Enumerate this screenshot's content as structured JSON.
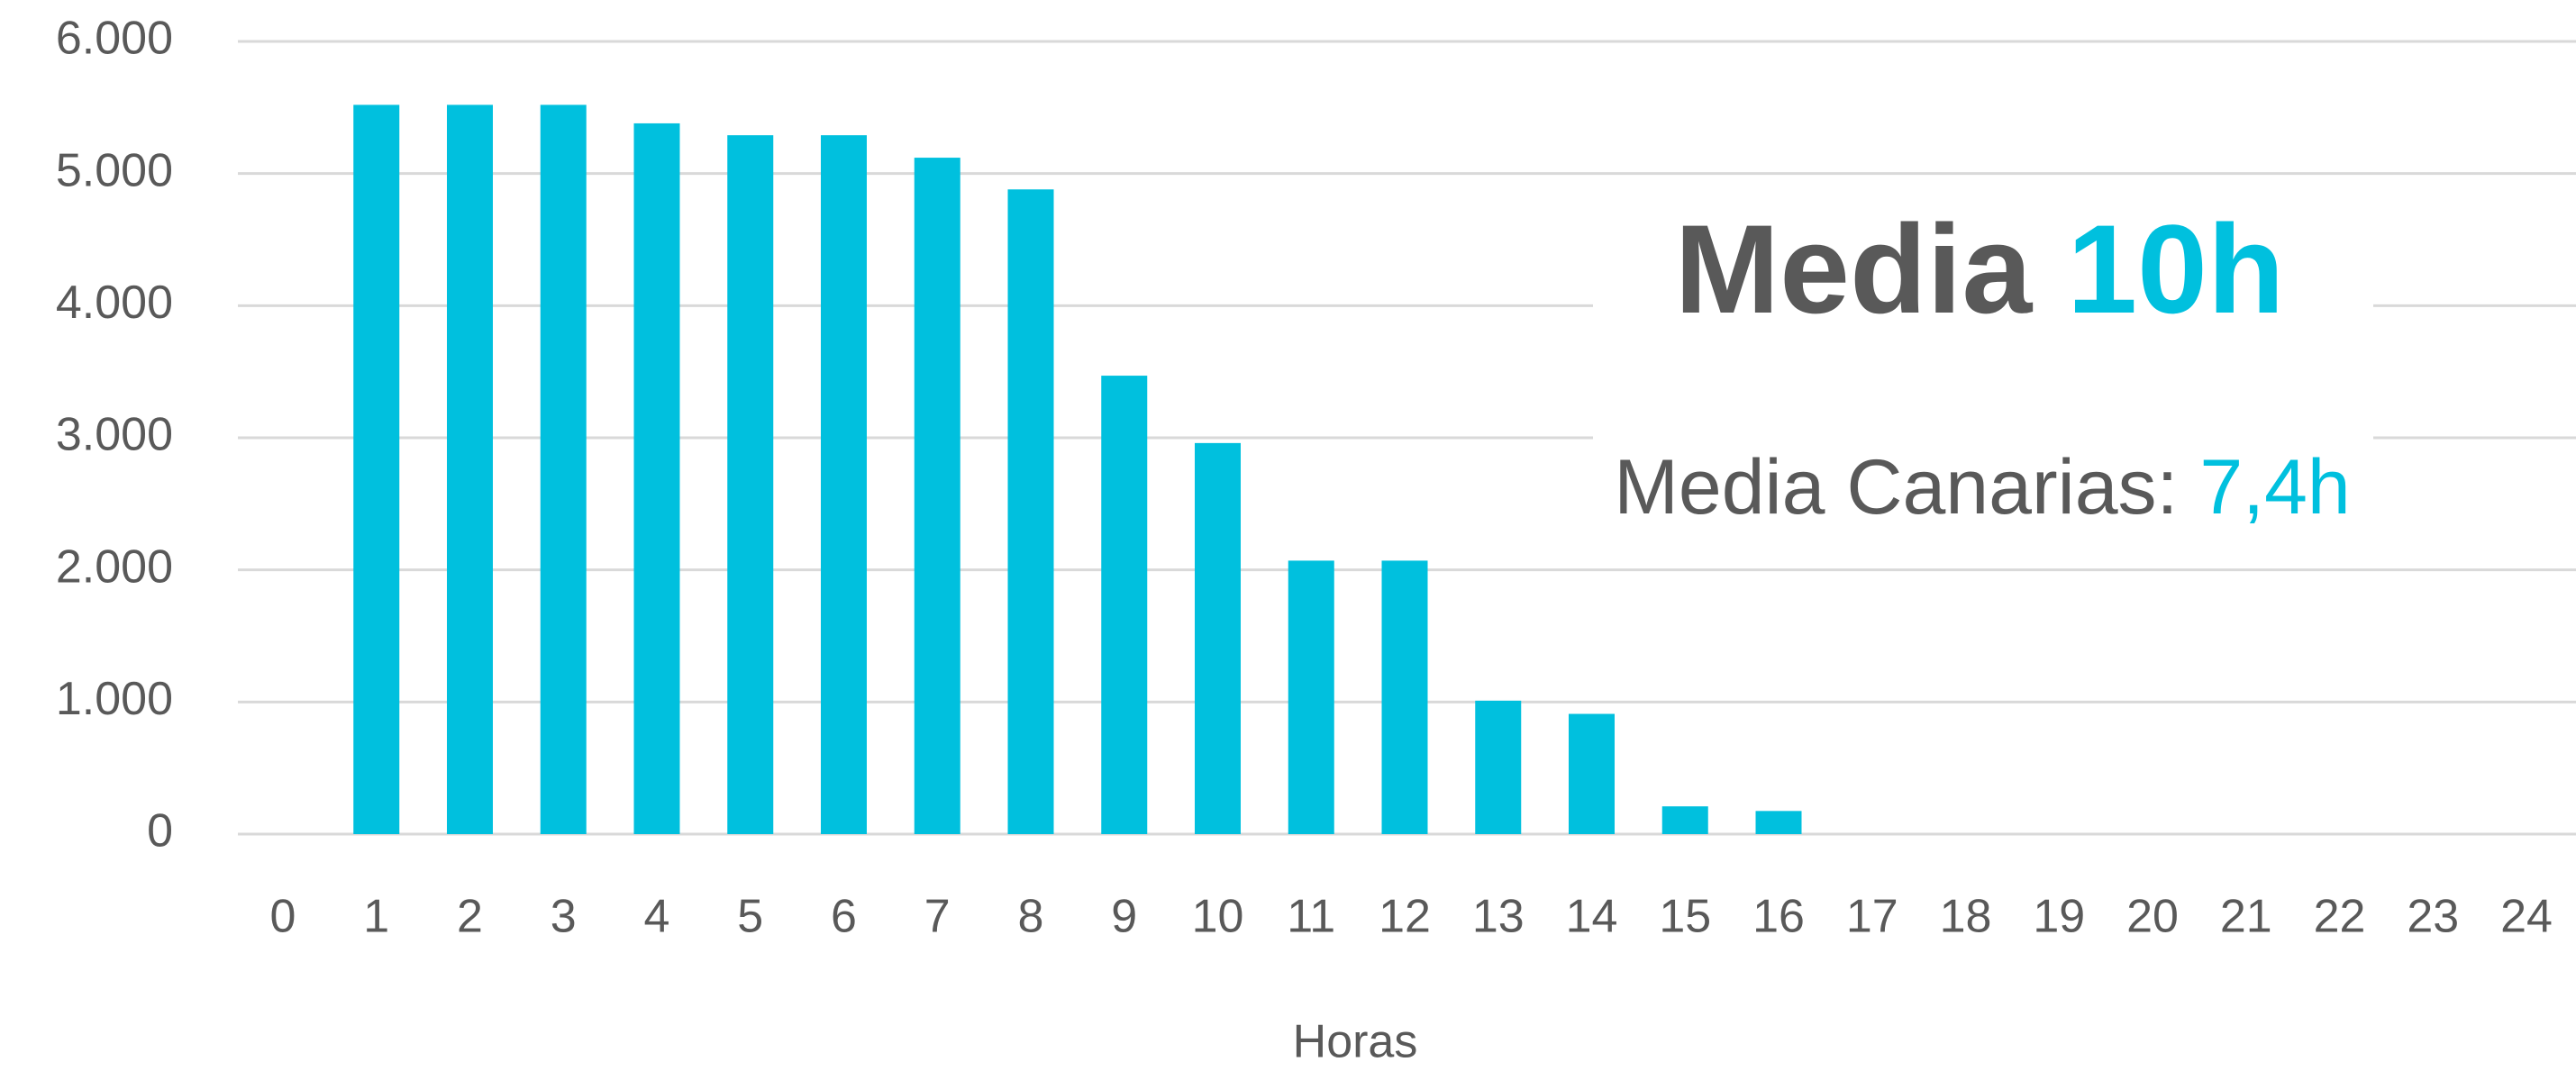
{
  "chart_data": {
    "type": "bar",
    "x_label": "Horas",
    "categories": [
      "0",
      "1",
      "2",
      "3",
      "4",
      "5",
      "6",
      "7",
      "8",
      "9",
      "10",
      "11",
      "12",
      "13",
      "14",
      "15",
      "16",
      "17",
      "18",
      "19",
      "20",
      "21",
      "22",
      "23",
      "24"
    ],
    "values": [
      0,
      5520,
      5520,
      5520,
      5380,
      5290,
      5290,
      5120,
      4880,
      3470,
      2960,
      2070,
      2070,
      1010,
      910,
      210,
      175,
      0,
      0,
      0,
      0,
      0,
      0,
      0,
      0
    ],
    "color": "#00c0de",
    "ylim": [
      0,
      6000
    ],
    "yticks": [
      0,
      {
        "value": 1000,
        "label": "1.000"
      },
      {
        "value": 2000,
        "label": "2.000"
      },
      {
        "value": 3000,
        "label": "3.000"
      },
      {
        "value": 4000,
        "label": "4.000"
      },
      {
        "value": 5000,
        "label": "5.000"
      },
      {
        "value": 6000,
        "label": "6.000"
      }
    ],
    "grid": true,
    "annotations": [
      {
        "text": "Media",
        "highlight": "10h"
      },
      {
        "text": "Media Canarias:",
        "highlight": "7,4h"
      }
    ]
  }
}
